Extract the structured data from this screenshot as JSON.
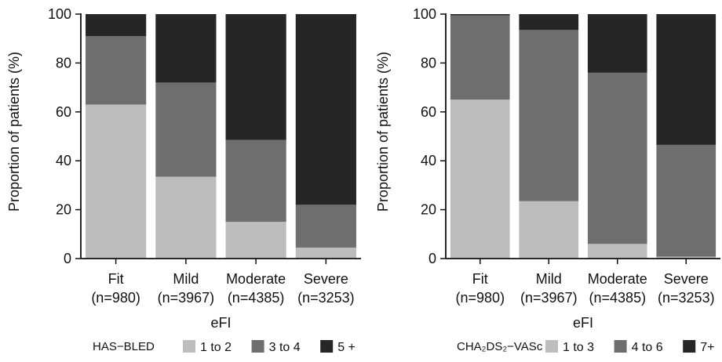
{
  "chart_data": [
    {
      "type": "bar",
      "stacked": true,
      "xlabel": "eFI",
      "ylabel": "Proportion of patients (%)",
      "ylim": [
        0,
        100
      ],
      "yticks": [
        0,
        20,
        40,
        60,
        80,
        100
      ],
      "grid": false,
      "categories": [
        {
          "name": "Fit",
          "n": "(n=980)"
        },
        {
          "name": "Mild",
          "n": "(n=3967)"
        },
        {
          "name": "Moderate",
          "n": "(n=4385)"
        },
        {
          "name": "Severe",
          "n": "(n=3253)"
        }
      ],
      "legend_title": "HAS−BLED",
      "legend_position": "bottom",
      "series": [
        {
          "name": "1 to 2",
          "color": "#bdbdbd",
          "values": [
            63,
            33.5,
            15,
            4.5
          ]
        },
        {
          "name": "3 to 4",
          "color": "#6e6e6e",
          "values": [
            28,
            38.5,
            33.5,
            17.5
          ]
        },
        {
          "name": "5 +",
          "color": "#262626",
          "values": [
            9,
            28,
            51.5,
            78
          ]
        }
      ]
    },
    {
      "type": "bar",
      "stacked": true,
      "xlabel": "eFI",
      "ylabel": "Proportion of patients (%)",
      "ylim": [
        0,
        100
      ],
      "yticks": [
        0,
        20,
        40,
        60,
        80,
        100
      ],
      "grid": false,
      "categories": [
        {
          "name": "Fit",
          "n": "(n=980)"
        },
        {
          "name": "Mild",
          "n": "(n=3967)"
        },
        {
          "name": "Moderate",
          "n": "(n=4385)"
        },
        {
          "name": "Severe",
          "n": "(n=3253)"
        }
      ],
      "legend_title": "CHA₂DS₂−VASc",
      "legend_position": "bottom",
      "series": [
        {
          "name": "1 to 3",
          "color": "#bdbdbd",
          "values": [
            65,
            23.5,
            6,
            0.8
          ]
        },
        {
          "name": "4 to 6",
          "color": "#6e6e6e",
          "values": [
            34.5,
            70,
            70,
            45.7
          ]
        },
        {
          "name": "7+",
          "color": "#262626",
          "values": [
            0.5,
            6.5,
            24,
            53.5
          ]
        }
      ]
    }
  ]
}
